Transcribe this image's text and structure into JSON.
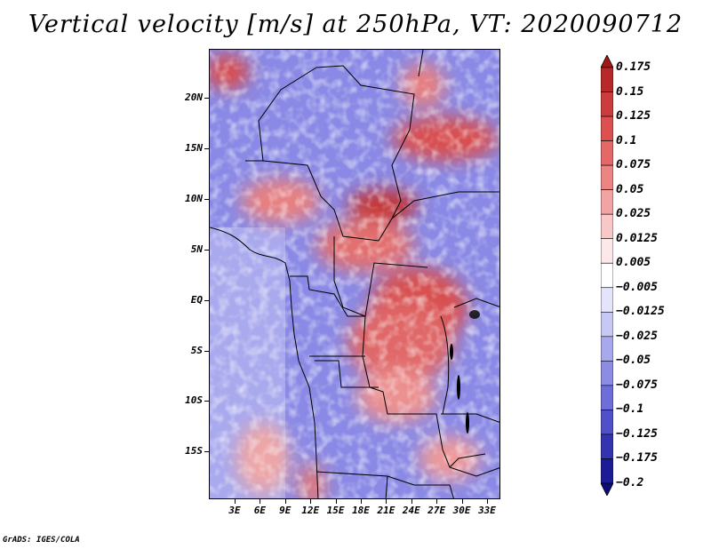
{
  "title": "Vertical velocity [m/s] at 250hPa, VT: 2020090712",
  "footer": "GrADS: IGES/COLA",
  "lat_labels": [
    "20N",
    "15N",
    "10N",
    "5N",
    "EQ",
    "5S",
    "10S",
    "15S"
  ],
  "lon_labels": [
    "3E",
    "6E",
    "9E",
    "12E",
    "15E",
    "18E",
    "21E",
    "24E",
    "27E",
    "30E",
    "33E"
  ],
  "colorbar": {
    "labels": [
      "0.175",
      "0.15",
      "0.125",
      "0.1",
      "0.075",
      "0.05",
      "0.025",
      "0.0125",
      "0.005",
      "−0.005",
      "−0.0125",
      "−0.025",
      "−0.05",
      "−0.075",
      "−0.1",
      "−0.125",
      "−0.175",
      "−0.2"
    ],
    "colors": [
      "#a01818",
      "#b82828",
      "#cc3c3c",
      "#dc5050",
      "#e46868",
      "#ec8484",
      "#f2a4a4",
      "#f8c8c8",
      "#fce8e8",
      "#ffffff",
      "#e4e4fa",
      "#c8c8f4",
      "#a8a8ec",
      "#8c8ce4",
      "#6e6ed8",
      "#5050c8",
      "#3434b0",
      "#1c1c96",
      "#0c0c7a"
    ]
  },
  "map": {
    "lon_range": [
      0,
      35
    ],
    "lat_range": [
      -20,
      24
    ],
    "field_colors": {
      "positive": "#e06464",
      "negative": "#7878e0",
      "neutral": "#ffffff"
    }
  }
}
